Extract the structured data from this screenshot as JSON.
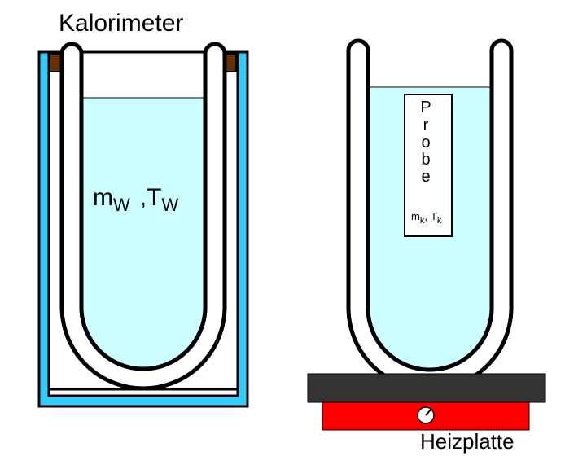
{
  "labels": {
    "calorimeter": "Kalorimeter",
    "water_mass_symbol": "m",
    "water_mass_subscript": "W",
    "separator": ",",
    "water_temp_symbol": "T",
    "water_temp_subscript": "W",
    "sample_letters": [
      "P",
      "r",
      "o",
      "b",
      "e"
    ],
    "sample_mass_symbol": "m",
    "sample_mass_subscript": "k",
    "sample_sep": ",",
    "sample_temp_symbol": "T",
    "sample_temp_subscript": "k",
    "hotplate": "Heizplatte"
  },
  "colors": {
    "water": "#ccffff",
    "outer_vessel": "#33ccff",
    "lid": "#663300",
    "plate_top": "#333333",
    "plate_body": "#ff0000",
    "outline": "#000000",
    "background": "#ffffff"
  },
  "icons": {
    "knob": "dial-knob-icon"
  }
}
